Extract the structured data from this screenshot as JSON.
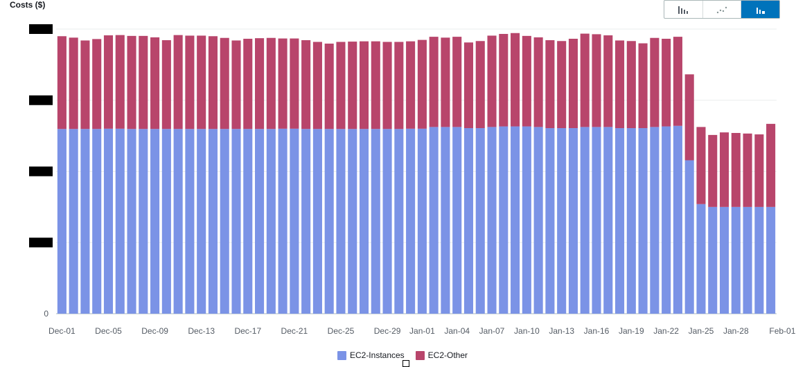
{
  "ylabel": "Costs ($)",
  "chart_type_toggle": {
    "options": [
      "bar-chart-icon",
      "line-chart-icon",
      "stacked-bar-chart-icon"
    ],
    "selected": "stacked-bar-chart-icon",
    "accent": "#0073bb"
  },
  "chart_data": {
    "type": "bar",
    "stacked": true,
    "title": "",
    "xlabel": "",
    "ylabel": "Costs ($)",
    "yaxis_tick_labels_redacted": true,
    "ytick_labels": [
      "0",
      "",
      "",
      "",
      ""
    ],
    "ylim": [
      0,
      100
    ],
    "x_tick_labels": [
      "Dec-01",
      "Dec-05",
      "Dec-09",
      "Dec-13",
      "Dec-17",
      "Dec-21",
      "Dec-25",
      "Dec-29",
      "Jan-01",
      "Jan-04",
      "Jan-07",
      "Jan-10",
      "Jan-13",
      "Jan-16",
      "Jan-19",
      "Jan-22",
      "Jan-25",
      "Jan-28",
      "Feb-01"
    ],
    "x_tick_positions": [
      0,
      4,
      8,
      12,
      16,
      20,
      24,
      28,
      31,
      34,
      37,
      40,
      43,
      46,
      49,
      52,
      55,
      58,
      62
    ],
    "series": [
      {
        "name": "EC2-Instances",
        "color": "#7b93e6",
        "values": [
          64.9,
          64.9,
          64.9,
          64.9,
          65,
          65,
          64.9,
          64.9,
          64.9,
          64.9,
          64.9,
          64.9,
          64.9,
          64.9,
          64.9,
          64.9,
          64.9,
          64.9,
          64.9,
          65,
          65,
          64.9,
          64.9,
          64.9,
          64.9,
          64.9,
          64.9,
          64.9,
          64.9,
          64.9,
          65,
          65,
          65.6,
          65.6,
          65.6,
          65.2,
          65.2,
          65.6,
          65.8,
          65.8,
          65.8,
          65.6,
          65.2,
          65.2,
          65.2,
          65.6,
          65.6,
          65.6,
          65.2,
          65.2,
          65.2,
          65.6,
          65.8,
          66,
          53.9,
          38.5,
          37.5,
          37.5,
          37.5,
          37.5,
          37.5,
          37.5
        ]
      },
      {
        "name": "EC2-Other",
        "color": "#b8456b",
        "values": [
          32.6,
          32.1,
          31.1,
          31.6,
          32.8,
          32.9,
          32.7,
          32.7,
          32.2,
          31.2,
          33,
          32.8,
          32.8,
          32.6,
          32,
          31.1,
          31.7,
          31.9,
          32,
          31.7,
          31.7,
          31.2,
          30.6,
          30,
          30.6,
          30.7,
          30.8,
          30.8,
          30.6,
          30.6,
          30.7,
          31.2,
          31.7,
          31.4,
          31.7,
          30.1,
          30.6,
          32.1,
          32.5,
          32.8,
          31.8,
          31.5,
          30.9,
          30.6,
          31.4,
          32.8,
          32.6,
          32.2,
          30.8,
          30.6,
          29.8,
          31.3,
          30.8,
          31.3,
          30.2,
          27.1,
          25.3,
          26.2,
          26,
          25.8,
          25.5,
          29.2
        ]
      }
    ],
    "legend": [
      "EC2-Instances",
      "EC2-Other"
    ],
    "legend_position": "bottom-center"
  }
}
